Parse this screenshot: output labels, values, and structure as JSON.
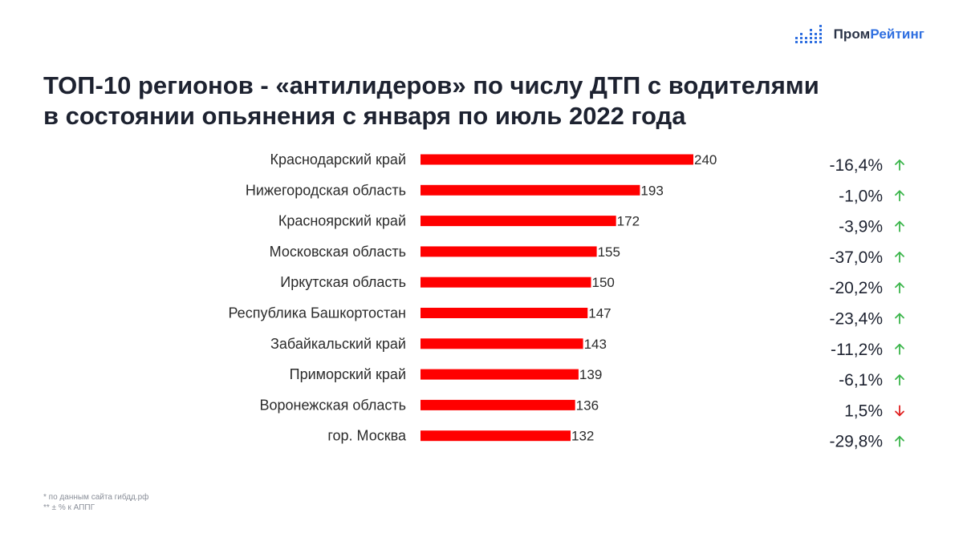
{
  "logo": {
    "text_part1": "Пром",
    "text_part2": "Рейтинг",
    "brand_color": "#2f6fe0"
  },
  "title": {
    "line1": "ТОП-10 регионов - «антилидеров» по числу ДТП с водителями",
    "line2": "в состоянии опьянения с января по июль 2022 года"
  },
  "chart_data": {
    "type": "bar",
    "orientation": "horizontal",
    "categories": [
      "Краснодарский край",
      "Нижегородская область",
      "Красноярский край",
      "Московская область",
      "Иркутская область",
      "Республика Башкортостан",
      "Забайкальский край",
      "Приморский край",
      "Воронежская область",
      "гор. Москва"
    ],
    "values": [
      240,
      193,
      172,
      155,
      150,
      147,
      143,
      139,
      136,
      132
    ],
    "changes": [
      "-16,4%",
      "-1,0%",
      "-3,9%",
      "-37,0%",
      "-20,2%",
      "-23,4%",
      "-11,2%",
      "-6,1%",
      "1,5%",
      "-29,8%"
    ],
    "change_arrows": [
      "up",
      "up",
      "up",
      "up",
      "up",
      "up",
      "up",
      "up",
      "down",
      "up"
    ],
    "bar_color": "#ff0000",
    "arrow_up_color": "#3ab54a",
    "arrow_down_color": "#e02020",
    "grid": false
  },
  "footnotes": {
    "note1": "* по данным сайта гибдд.рф",
    "note2": "** ± % к АППГ"
  }
}
